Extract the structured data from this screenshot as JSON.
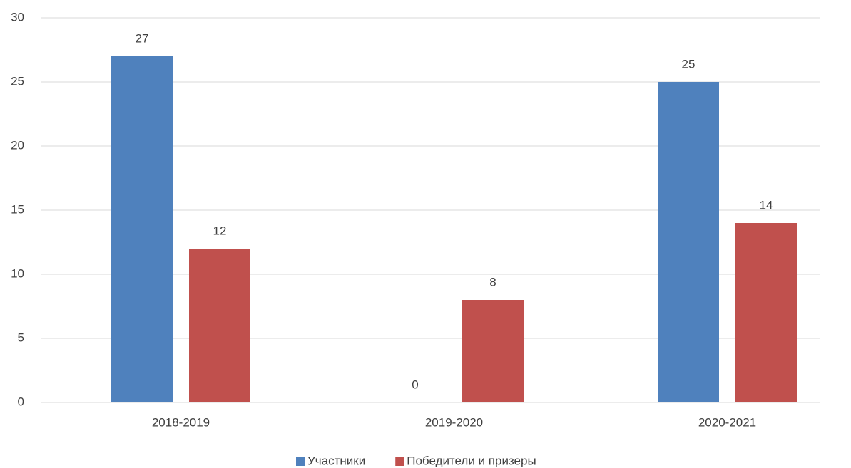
{
  "chart_data": {
    "type": "bar",
    "categories": [
      "2018-2019",
      "2019-2020",
      "2020-2021"
    ],
    "series": [
      {
        "name": "Участники",
        "color": "#4f81bd",
        "values": [
          27,
          0,
          25
        ]
      },
      {
        "name": "Победители и призеры",
        "color": "#c0504d",
        "values": [
          12,
          8,
          14
        ]
      }
    ],
    "ylim": [
      0,
      30
    ],
    "yticks": [
      0,
      5,
      10,
      15,
      20,
      25,
      30
    ],
    "grid": true,
    "legend": "bottom"
  }
}
